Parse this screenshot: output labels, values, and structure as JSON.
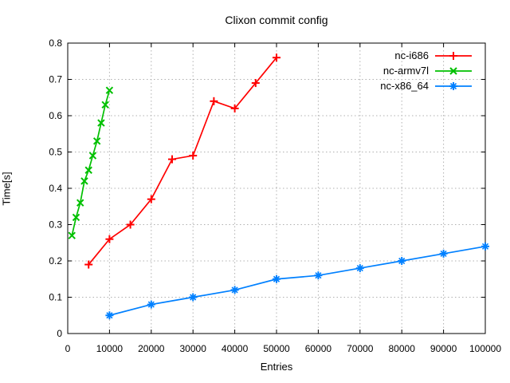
{
  "chart_data": {
    "type": "line",
    "title": "Clixon commit config",
    "xlabel": "Entries",
    "ylabel": "Time[s]",
    "xlim": [
      0,
      100000
    ],
    "ylim": [
      0,
      0.8
    ],
    "xticks": [
      0,
      10000,
      20000,
      30000,
      40000,
      50000,
      60000,
      70000,
      80000,
      90000,
      100000
    ],
    "yticks": [
      0,
      0.1,
      0.2,
      0.3,
      0.4,
      0.5,
      0.6,
      0.7,
      0.8
    ],
    "grid": true,
    "legend_position": "top-right",
    "colors": {
      "grid": "#b0b0b0",
      "axis": "#000000",
      "background": "#ffffff"
    },
    "series": [
      {
        "name": "nc-i686",
        "color": "#ff0000",
        "marker": "plus",
        "x": [
          5000,
          10000,
          15000,
          20000,
          25000,
          30000,
          35000,
          40000,
          45000,
          50000
        ],
        "y": [
          0.19,
          0.26,
          0.3,
          0.37,
          0.48,
          0.49,
          0.64,
          0.62,
          0.69,
          0.76
        ]
      },
      {
        "name": "nc-armv7l",
        "color": "#00c000",
        "marker": "cross",
        "x": [
          1000,
          2000,
          3000,
          4000,
          5000,
          6000,
          7000,
          8000,
          9000,
          10000
        ],
        "y": [
          0.27,
          0.32,
          0.36,
          0.42,
          0.45,
          0.49,
          0.53,
          0.58,
          0.63,
          0.67
        ]
      },
      {
        "name": "nc-x86_64",
        "color": "#0080ff",
        "marker": "asterisk",
        "x": [
          10000,
          20000,
          30000,
          40000,
          50000,
          60000,
          70000,
          80000,
          90000,
          100000
        ],
        "y": [
          0.05,
          0.08,
          0.1,
          0.12,
          0.15,
          0.16,
          0.18,
          0.2,
          0.22,
          0.24
        ]
      }
    ]
  }
}
